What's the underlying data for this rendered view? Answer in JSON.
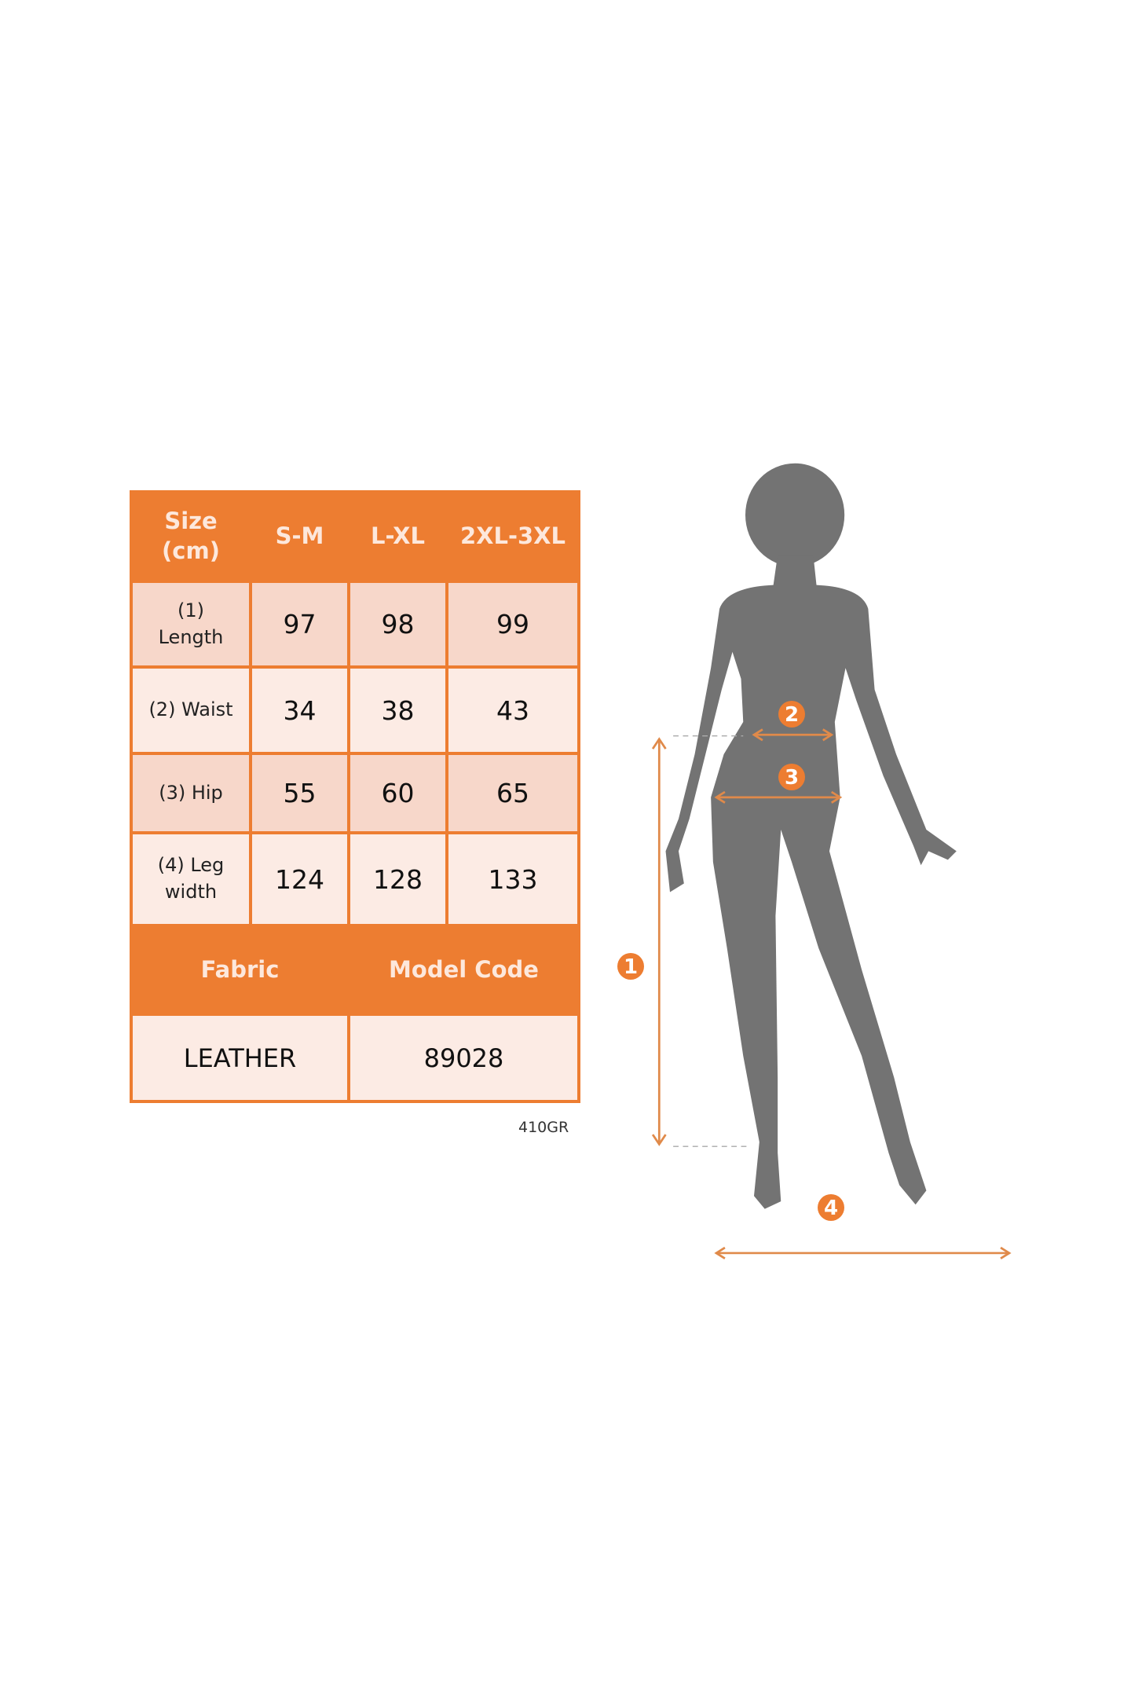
{
  "table": {
    "header": [
      "Size (cm)",
      "S-M",
      "L-XL",
      "2XL-3XL"
    ],
    "rows": [
      {
        "label": "(1) Length",
        "values": [
          "97",
          "98",
          "99"
        ]
      },
      {
        "label": "(2) Waist",
        "values": [
          "34",
          "38",
          "43"
        ]
      },
      {
        "label": "(3) Hip",
        "values": [
          "55",
          "60",
          "65"
        ]
      },
      {
        "label": "(4) Leg width",
        "values": [
          "124",
          "128",
          "133"
        ]
      }
    ],
    "footer_headers": [
      "Fabric",
      "Model Code"
    ],
    "footer_values": [
      "LEATHER",
      "89028"
    ]
  },
  "code": "410GR",
  "figure": {
    "markers": [
      "1",
      "2",
      "3",
      "4"
    ],
    "accent_color": "#ed7d31",
    "silhouette_color": "#737373"
  }
}
